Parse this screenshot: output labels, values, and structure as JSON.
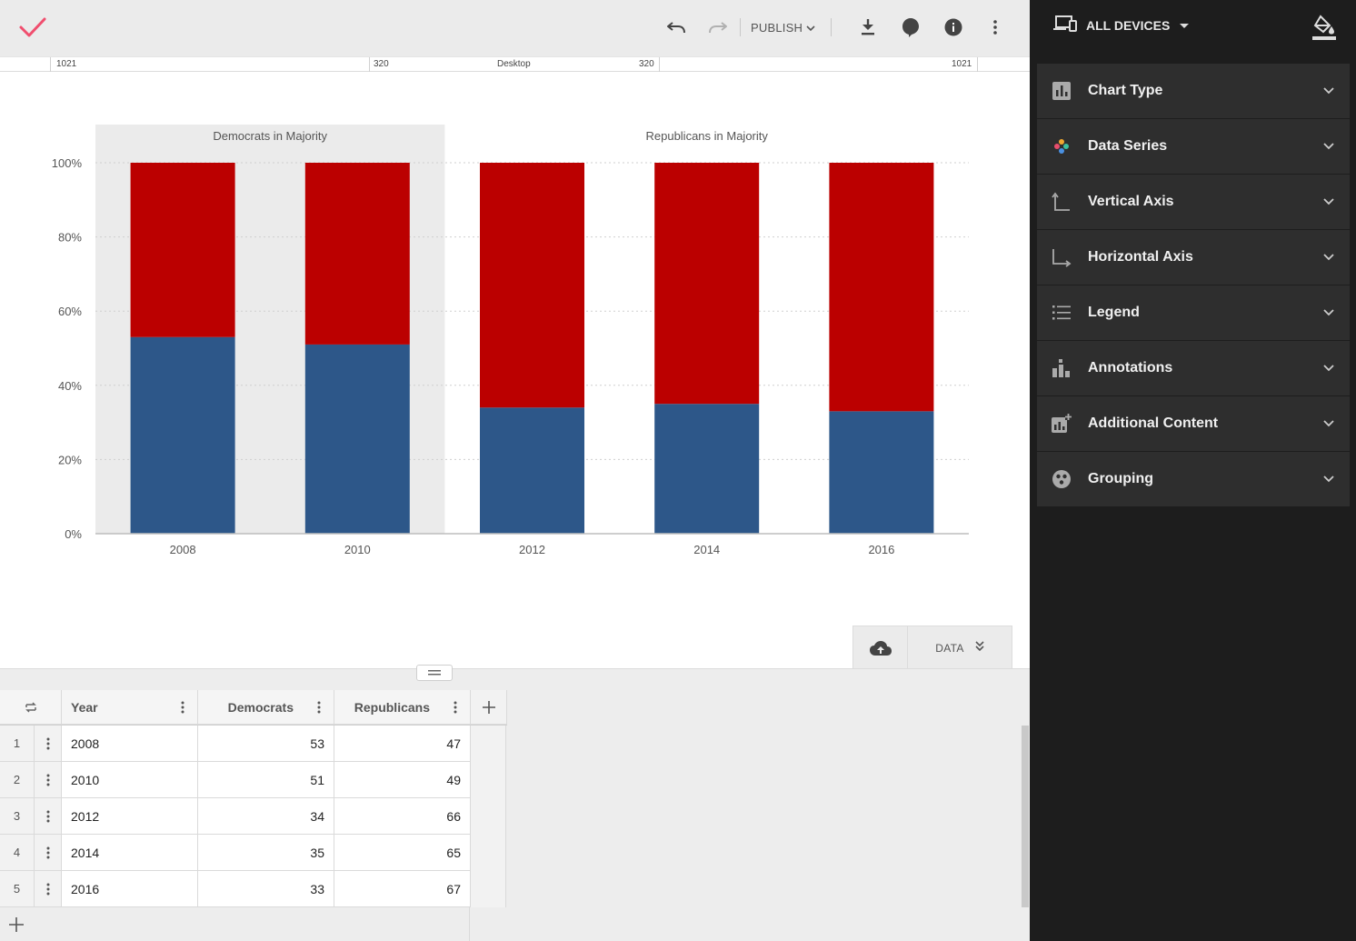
{
  "toolbar": {
    "publish_label": "PUBLISH"
  },
  "ruler": {
    "left_outer": "1021",
    "left_inner": "320",
    "center": "Desktop",
    "right_inner": "320",
    "right_outer": "1021"
  },
  "chart_data": {
    "type": "bar",
    "stacked": true,
    "normalized": true,
    "categories": [
      "2008",
      "2010",
      "2012",
      "2014",
      "2016"
    ],
    "series": [
      {
        "values": [
          53,
          51,
          34,
          35,
          33
        ],
        "color": "#2d5789"
      },
      {
        "values": [
          47,
          49,
          66,
          65,
          67
        ],
        "color": "#bb0000"
      }
    ],
    "ylim": [
      0,
      100
    ],
    "y_ticks": [
      "0%",
      "20%",
      "40%",
      "60%",
      "80%",
      "100%"
    ],
    "y_tick_values": [
      0,
      20,
      40,
      60,
      80,
      100
    ],
    "grid": "dotted horizontal",
    "annotations": [
      {
        "label": "Democrats in Majority",
        "from": "2008",
        "to": "2010",
        "shaded": true
      },
      {
        "label": "Republicans in Majority",
        "from": "2012",
        "to": "2016",
        "shaded": false
      }
    ]
  },
  "drawer": {
    "data_label": "DATA"
  },
  "table": {
    "headers": [
      "Year",
      "Democrats",
      "Republicans"
    ],
    "rows": [
      {
        "num": "1",
        "year": "2008",
        "dem": "53",
        "rep": "47"
      },
      {
        "num": "2",
        "year": "2010",
        "dem": "51",
        "rep": "49"
      },
      {
        "num": "3",
        "year": "2012",
        "dem": "34",
        "rep": "66"
      },
      {
        "num": "4",
        "year": "2014",
        "dem": "35",
        "rep": "65"
      },
      {
        "num": "5",
        "year": "2016",
        "dem": "33",
        "rep": "67"
      }
    ]
  },
  "sidebar": {
    "device_label": "ALL DEVICES",
    "items": [
      {
        "label": "Chart Type",
        "icon": "bar-chart-icon"
      },
      {
        "label": "Data Series",
        "icon": "palette-icon"
      },
      {
        "label": "Vertical Axis",
        "icon": "vertical-axis-icon"
      },
      {
        "label": "Horizontal Axis",
        "icon": "horizontal-axis-icon"
      },
      {
        "label": "Legend",
        "icon": "list-icon"
      },
      {
        "label": "Annotations",
        "icon": "annotations-icon"
      },
      {
        "label": "Additional Content",
        "icon": "add-chart-icon"
      },
      {
        "label": "Grouping",
        "icon": "grouping-icon"
      }
    ]
  },
  "colors": {
    "accent_check": "#f04e6e",
    "democrat_blue": "#2d5789",
    "republican_red": "#bb0000",
    "sidebar_bg": "#1d1d1d",
    "sidebar_item_bg": "#2e2e2e"
  }
}
